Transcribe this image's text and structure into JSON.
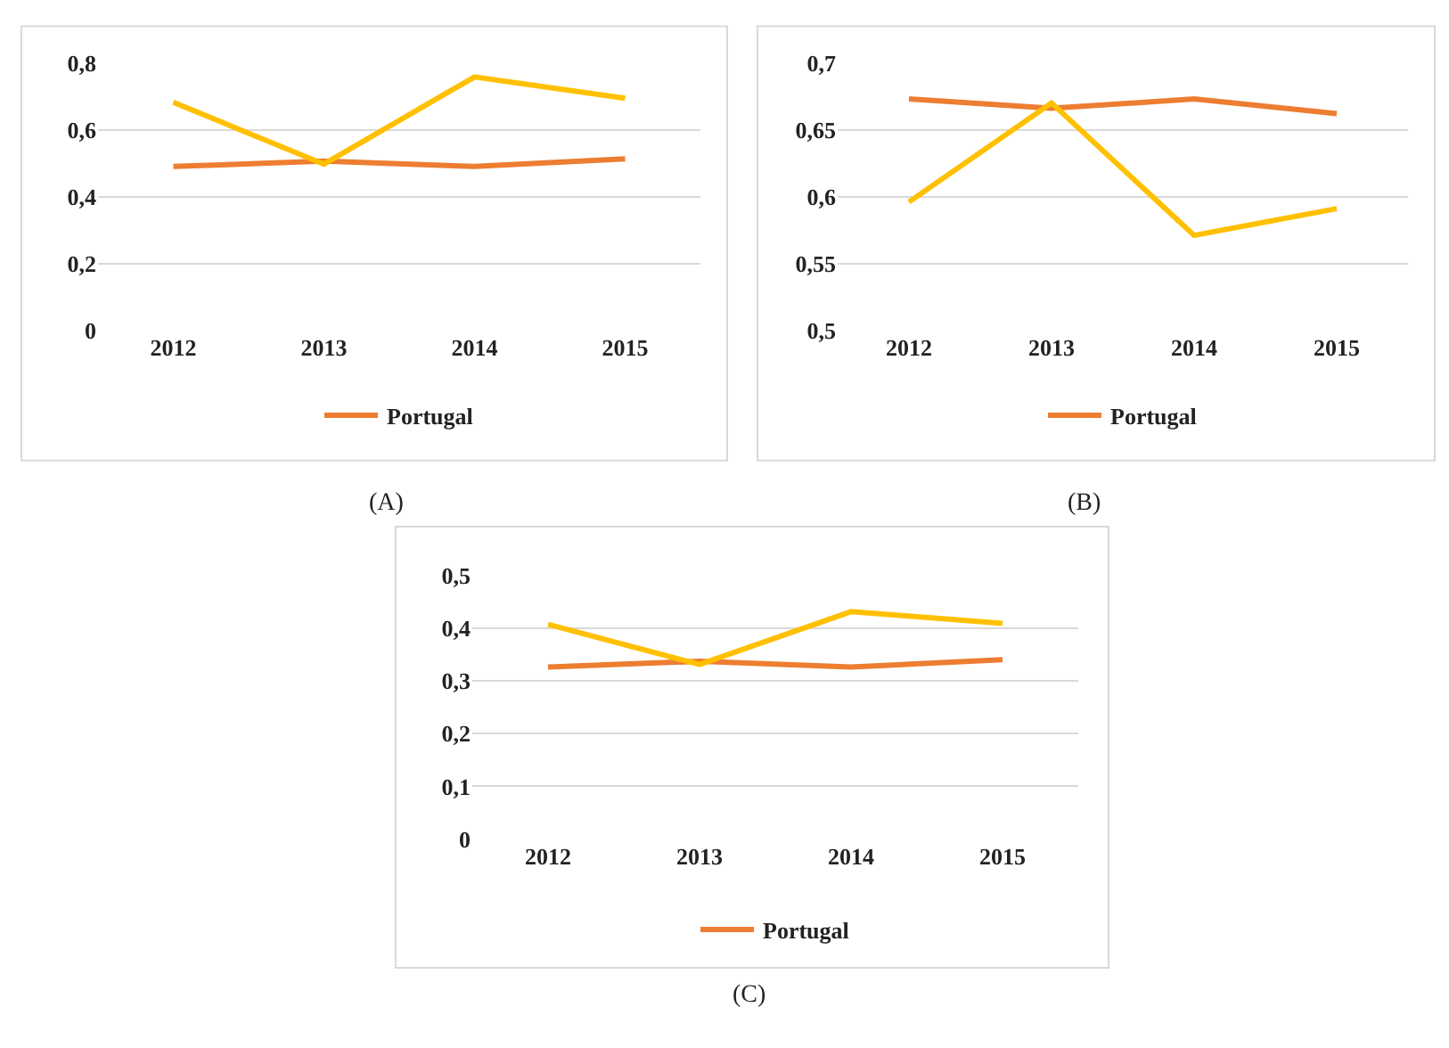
{
  "chart_data": [
    {
      "type": "line",
      "categories": [
        "2012",
        "2013",
        "2014",
        "2015"
      ],
      "ylim": [
        0,
        0.8
      ],
      "yticks": [
        {
          "value": 0,
          "label": "0"
        },
        {
          "value": 0.2,
          "label": "0,2"
        },
        {
          "value": 0.4,
          "label": "0,4"
        },
        {
          "value": 0.6,
          "label": "0,6"
        },
        {
          "value": 0.8,
          "label": "0,8"
        }
      ],
      "grid": "y",
      "legend": "bottom",
      "annotations": [
        "(A)"
      ],
      "series": [
        {
          "name": "Portugal",
          "color": "#ed7d31",
          "values": [
            0.49,
            0.506,
            0.49,
            0.513
          ]
        },
        {
          "color": "#ffc000",
          "values": [
            0.682,
            0.497,
            0.758,
            0.694
          ]
        }
      ]
    },
    {
      "type": "line",
      "categories": [
        "2012",
        "2013",
        "2014",
        "2015"
      ],
      "ylim": [
        0.5,
        0.7
      ],
      "yticks": [
        {
          "value": 0.5,
          "label": "0,5"
        },
        {
          "value": 0.55,
          "label": "0,55"
        },
        {
          "value": 0.6,
          "label": "0,6"
        },
        {
          "value": 0.65,
          "label": "0,65"
        },
        {
          "value": 0.7,
          "label": "0,7"
        }
      ],
      "grid": "y",
      "legend": "bottom",
      "annotations": [
        "(B)"
      ],
      "series": [
        {
          "name": "Portugal",
          "color": "#ed7d31",
          "values": [
            0.673,
            0.666,
            0.673,
            0.662
          ]
        },
        {
          "color": "#ffc000",
          "values": [
            0.596,
            0.67,
            0.571,
            0.591
          ]
        }
      ]
    },
    {
      "type": "line",
      "categories": [
        "2012",
        "2013",
        "2014",
        "2015"
      ],
      "ylim": [
        0,
        0.5
      ],
      "yticks": [
        {
          "value": 0,
          "label": "0"
        },
        {
          "value": 0.1,
          "label": "0,1"
        },
        {
          "value": 0.2,
          "label": "0,2"
        },
        {
          "value": 0.3,
          "label": "0,3"
        },
        {
          "value": 0.4,
          "label": "0,4"
        },
        {
          "value": 0.5,
          "label": "0,5"
        }
      ],
      "grid": "y",
      "legend": "bottom",
      "annotations": [
        "(C)"
      ],
      "series": [
        {
          "name": "Portugal",
          "color": "#ed7d31",
          "values": [
            0.326,
            0.337,
            0.326,
            0.34
          ]
        },
        {
          "color": "#ffc000",
          "values": [
            0.407,
            0.331,
            0.431,
            0.409
          ]
        }
      ]
    }
  ]
}
